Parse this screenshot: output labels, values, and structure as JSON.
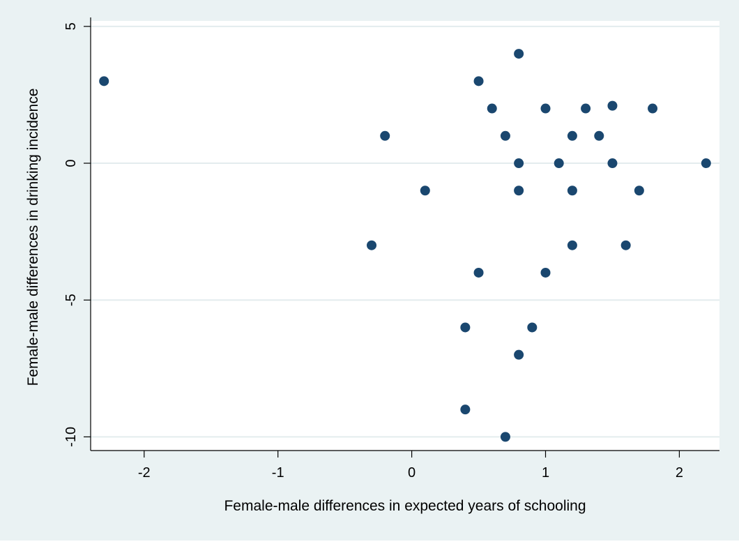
{
  "chart_data": {
    "type": "scatter",
    "title": "",
    "xlabel": "Female-male differences in expected years of schooling",
    "ylabel": "Female-male differences in drinking incidence",
    "xlim": [
      -2.4,
      2.3
    ],
    "ylim": [
      -10.5,
      5.2
    ],
    "xticks": [
      -2,
      -1,
      0,
      1,
      2
    ],
    "yticks": [
      5,
      0,
      -5,
      -10
    ],
    "xtick_labels": [
      "-2",
      "-1",
      "0",
      "1",
      "2"
    ],
    "ytick_labels": [
      "5",
      "0",
      "-5",
      "-10"
    ],
    "grid": "horizontal",
    "legend": "none",
    "colors": {
      "outer_background": "#eaf2f3",
      "plot_background": "#ffffff",
      "gridline": "#e3ecee",
      "marker": "#1a476f",
      "axis": "#000000"
    },
    "points": [
      {
        "x": -2.3,
        "y": 3
      },
      {
        "x": -0.3,
        "y": -3
      },
      {
        "x": -0.2,
        "y": 1
      },
      {
        "x": 0.1,
        "y": -1
      },
      {
        "x": 0.4,
        "y": -6
      },
      {
        "x": 0.4,
        "y": -9
      },
      {
        "x": 0.5,
        "y": 3
      },
      {
        "x": 0.5,
        "y": -4
      },
      {
        "x": 0.6,
        "y": 2
      },
      {
        "x": 0.7,
        "y": 1
      },
      {
        "x": 0.7,
        "y": -10
      },
      {
        "x": 0.8,
        "y": 4
      },
      {
        "x": 0.8,
        "y": 0
      },
      {
        "x": 0.8,
        "y": -1
      },
      {
        "x": 0.8,
        "y": -7
      },
      {
        "x": 0.9,
        "y": -6
      },
      {
        "x": 1.0,
        "y": 2
      },
      {
        "x": 1.0,
        "y": -4
      },
      {
        "x": 1.1,
        "y": 0
      },
      {
        "x": 1.2,
        "y": 1
      },
      {
        "x": 1.2,
        "y": -1
      },
      {
        "x": 1.2,
        "y": -3
      },
      {
        "x": 1.3,
        "y": 2
      },
      {
        "x": 1.4,
        "y": 1
      },
      {
        "x": 1.5,
        "y": 2.1
      },
      {
        "x": 1.5,
        "y": 0
      },
      {
        "x": 1.6,
        "y": -3
      },
      {
        "x": 1.7,
        "y": -1
      },
      {
        "x": 1.8,
        "y": 2
      },
      {
        "x": 2.2,
        "y": 0
      }
    ]
  }
}
